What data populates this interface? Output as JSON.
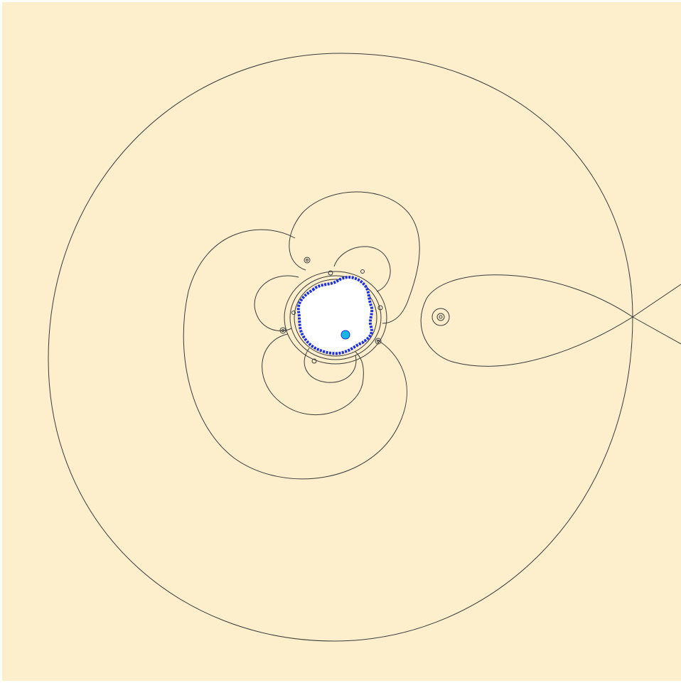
{
  "colors": {
    "background": "#fdefcb",
    "contour_stroke": "#3a3a3a",
    "set_interior": "#ffffff",
    "boundary": "#1a2fe0",
    "attracting_point": "#19b7e8",
    "frame": "#ffffff"
  },
  "figure": {
    "kind": "escape-time fractal with level-curve contours",
    "visible_text": []
  }
}
